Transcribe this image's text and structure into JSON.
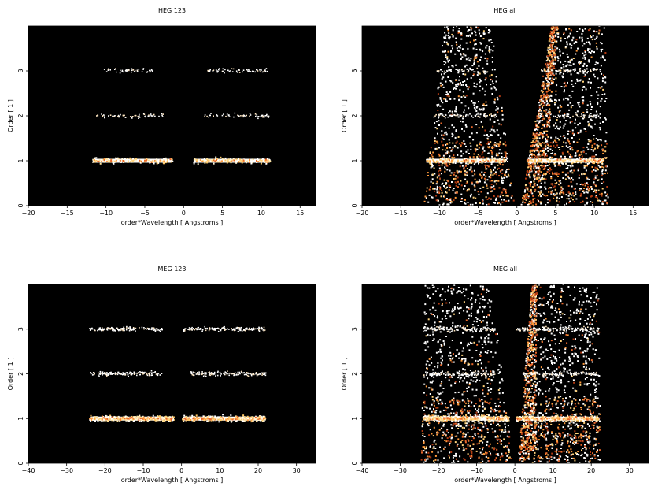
{
  "chart_data": [
    {
      "type": "heatmap",
      "title": "HEG 123",
      "xlabel": "order*Wavelength [ Angstroms ]",
      "ylabel": "Order [ 1 ]",
      "xlim": [
        -20,
        17
      ],
      "ylim": [
        0,
        4
      ],
      "xticks": [
        -20,
        -15,
        -10,
        -5,
        0,
        5,
        10,
        15
      ],
      "yticks": [
        0,
        1,
        2,
        3
      ],
      "background": "#000000",
      "bands": [
        {
          "order": 1,
          "segments": [
            [
              -11.7,
              -1.4
            ],
            [
              1.3,
              11.2
            ]
          ],
          "intensity": "high"
        },
        {
          "order": 2,
          "segments": [
            [
              -11.2,
              -2.6
            ],
            [
              2.7,
              11.1
            ]
          ],
          "intensity": "low"
        },
        {
          "order": 3,
          "segments": [
            [
              -10.3,
              -3.8
            ],
            [
              3.0,
              11.0
            ]
          ],
          "intensity": "low"
        }
      ],
      "wedges": []
    },
    {
      "type": "heatmap",
      "title": "HEG all",
      "xlabel": "order*Wavelength [ Angstroms ]",
      "ylabel": "Order [ 1 ]",
      "xlim": [
        -20,
        17
      ],
      "ylim": [
        0,
        4
      ],
      "xticks": [
        -20,
        -15,
        -10,
        -5,
        0,
        5,
        10,
        15
      ],
      "yticks": [
        0,
        1,
        2,
        3
      ],
      "background": "#000000",
      "bands": [
        {
          "order": 1,
          "segments": [
            [
              -11.7,
              -1.4
            ],
            [
              1.3,
              11.2
            ]
          ],
          "intensity": "high"
        },
        {
          "order": 2,
          "segments": [
            [
              -11.2,
              -2.6
            ],
            [
              2.7,
              11.1
            ]
          ],
          "intensity": "low"
        },
        {
          "order": 3,
          "segments": [
            [
              -10.3,
              -3.8
            ],
            [
              3.0,
              11.0
            ]
          ],
          "intensity": "low"
        }
      ],
      "wedges": [
        {
          "side": "left",
          "x_bottom": [
            -12.0,
            -0.3
          ],
          "x_top": [
            -9.4,
            -3.3
          ],
          "style": "scatter-white"
        },
        {
          "side": "right",
          "x_bottom": [
            0.5,
            11.8
          ],
          "x_top": [
            4.5,
            11.4
          ],
          "style": "scatter-white"
        },
        {
          "side": "inner-right",
          "x_bottom": [
            0.5,
            3.2
          ],
          "x_top": [
            4.5,
            5.4
          ],
          "style": "dense-orange"
        }
      ]
    },
    {
      "type": "heatmap",
      "title": "MEG 123",
      "xlabel": "order*Wavelength [ Angstroms ]",
      "ylabel": "Order [ 1 ]",
      "xlim": [
        -40,
        35
      ],
      "ylim": [
        0,
        4
      ],
      "xticks": [
        -40,
        -30,
        -20,
        -10,
        0,
        10,
        20,
        30
      ],
      "yticks": [
        0,
        1,
        2,
        3
      ],
      "background": "#000000",
      "bands": [
        {
          "order": 1,
          "segments": [
            [
              -24.0,
              -2.0
            ],
            [
              0.3,
              22.0
            ]
          ],
          "intensity": "high"
        },
        {
          "order": 2,
          "segments": [
            [
              -24.0,
              -5.0
            ],
            [
              2.0,
              22.0
            ]
          ],
          "intensity": "low"
        },
        {
          "order": 3,
          "segments": [
            [
              -24.0,
              -5.0
            ],
            [
              0.5,
              22.0
            ]
          ],
          "intensity": "low"
        }
      ],
      "wedges": []
    },
    {
      "type": "heatmap",
      "title": "MEG all",
      "xlabel": "order*Wavelength [ Angstroms ]",
      "ylabel": "Order [ 1 ]",
      "xlim": [
        -40,
        35
      ],
      "ylim": [
        0,
        4
      ],
      "xticks": [
        -40,
        -30,
        -20,
        -10,
        0,
        10,
        20,
        30
      ],
      "yticks": [
        0,
        1,
        2,
        3
      ],
      "background": "#000000",
      "bands": [
        {
          "order": 1,
          "segments": [
            [
              -24.0,
              -1.5
            ],
            [
              0.5,
              22.0
            ]
          ],
          "intensity": "high"
        },
        {
          "order": 2,
          "segments": [
            [
              -24.0,
              -5.0
            ],
            [
              2.0,
              22.0
            ]
          ],
          "intensity": "low"
        },
        {
          "order": 3,
          "segments": [
            [
              -24.0,
              -5.0
            ],
            [
              0.5,
              22.0
            ]
          ],
          "intensity": "low"
        }
      ],
      "wedges": [
        {
          "side": "left",
          "x_bottom": [
            -24.5,
            -0.5
          ],
          "x_top": [
            -23.5,
            -6.0
          ],
          "style": "scatter-white"
        },
        {
          "side": "right",
          "x_bottom": [
            0.8,
            22.5
          ],
          "x_top": [
            4.5,
            22.0
          ],
          "style": "scatter-white"
        },
        {
          "side": "inner-right",
          "x_bottom": [
            0.8,
            5.5
          ],
          "x_top": [
            4.5,
            5.8
          ],
          "style": "dense-orange"
        }
      ]
    }
  ]
}
